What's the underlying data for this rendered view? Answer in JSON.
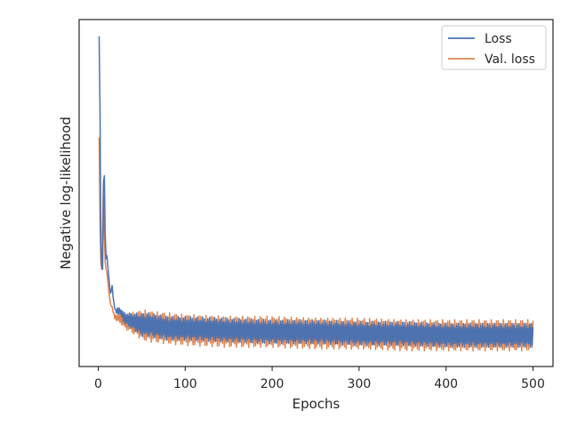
{
  "chart_data": {
    "type": "line",
    "xlabel": "Epochs",
    "ylabel": "Negative log-likelihood",
    "xlim": [
      -22,
      523
    ],
    "ylim": [
      0,
      1
    ],
    "x_ticks": [
      0,
      100,
      200,
      300,
      400,
      500
    ],
    "y_ticks": [],
    "grid": false,
    "legend_position": "top-right",
    "series": [
      {
        "name": "Loss",
        "color": "#4c72b0",
        "x": [
          1,
          2,
          3,
          4,
          5,
          6,
          7,
          8,
          9,
          10,
          12,
          14,
          16,
          18,
          20,
          25,
          30,
          40,
          50,
          60,
          80,
          100,
          150,
          200,
          250,
          300,
          350,
          400,
          450,
          500
        ],
        "y": [
          0.952,
          0.75,
          0.35,
          0.29,
          0.28,
          0.53,
          0.55,
          0.38,
          0.31,
          0.32,
          0.26,
          0.21,
          0.23,
          0.18,
          0.16,
          0.16,
          0.14,
          0.13,
          0.12,
          0.12,
          0.11,
          0.11,
          0.105,
          0.1,
          0.1,
          0.095,
          0.095,
          0.09,
          0.09,
          0.09
        ],
        "oscillation_amplitude": 0.035
      },
      {
        "name": "Val. loss",
        "color": "#dd8452",
        "x": [
          1,
          2,
          3,
          4,
          5,
          6,
          7,
          8,
          9,
          10,
          12,
          14,
          16,
          18,
          20,
          25,
          30,
          40,
          50,
          60,
          80,
          100,
          150,
          200,
          250,
          300,
          350,
          400,
          450,
          500
        ],
        "y": [
          0.66,
          0.42,
          0.3,
          0.28,
          0.4,
          0.52,
          0.38,
          0.3,
          0.28,
          0.27,
          0.22,
          0.18,
          0.17,
          0.15,
          0.14,
          0.14,
          0.13,
          0.125,
          0.12,
          0.115,
          0.11,
          0.105,
          0.1,
          0.1,
          0.095,
          0.095,
          0.09,
          0.09,
          0.09,
          0.09
        ],
        "oscillation_amplitude": 0.045
      }
    ]
  }
}
